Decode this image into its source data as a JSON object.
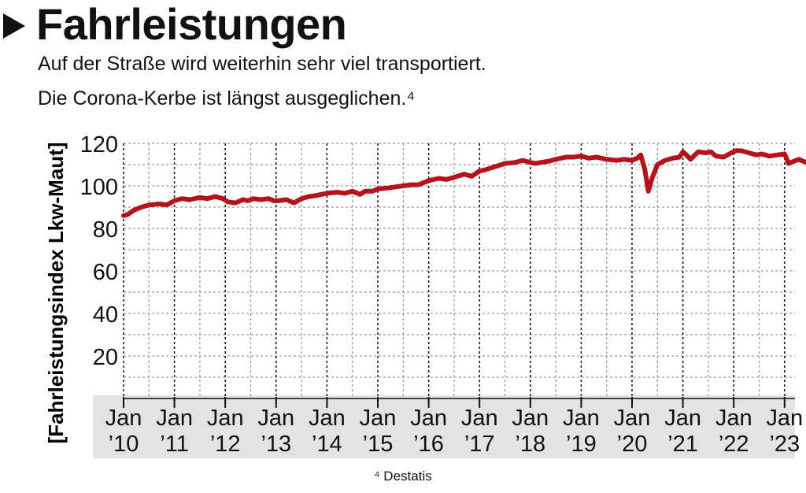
{
  "header": {
    "title": "Fahrleistungen",
    "subtitle_line1": "Auf der Straße wird weiterhin sehr viel transportiert.",
    "subtitle_line2": "Die Corona-Kerbe ist längst ausgeglichen.⁴"
  },
  "footnote": "⁴ Destatis",
  "colors": {
    "line": "#b5121b",
    "grid": "#9a9a9a",
    "band": "#e3e3e3",
    "text": "#111111"
  },
  "chart_data": {
    "type": "line",
    "title": "Fahrleistungen",
    "ylabel": "[Fahrleistungsindex Lkw-Maut]",
    "xlabel": "",
    "ylim": [
      0,
      122
    ],
    "yticks": [
      20,
      40,
      60,
      80,
      100,
      120
    ],
    "x_tick_labels": [
      {
        "line1": "Jan",
        "line2": "’10",
        "year": 2010
      },
      {
        "line1": "Jan",
        "line2": "’11",
        "year": 2011
      },
      {
        "line1": "Jan",
        "line2": "’12",
        "year": 2012
      },
      {
        "line1": "Jan",
        "line2": "’13",
        "year": 2013
      },
      {
        "line1": "Jan",
        "line2": "’14",
        "year": 2014
      },
      {
        "line1": "Jan",
        "line2": "’15",
        "year": 2015
      },
      {
        "line1": "Jan",
        "line2": "’16",
        "year": 2016
      },
      {
        "line1": "Jan",
        "line2": "’17",
        "year": 2017
      },
      {
        "line1": "Jan",
        "line2": "’18",
        "year": 2018
      },
      {
        "line1": "Jan",
        "line2": "’19",
        "year": 2019
      },
      {
        "line1": "Jan",
        "line2": "’20",
        "year": 2020
      },
      {
        "line1": "Jan",
        "line2": "’21",
        "year": 2021
      },
      {
        "line1": "Jan",
        "line2": "’22",
        "year": 2022
      },
      {
        "line1": "Jan",
        "line2": "’23",
        "year": 2023
      }
    ],
    "grid": true,
    "x_range": [
      2010.0,
      2023.42
    ],
    "series": [
      {
        "x": [
          2010.0,
          2010.08,
          2010.2,
          2010.35,
          2010.5,
          2010.7,
          2010.85,
          2011.0,
          2011.15,
          2011.3,
          2011.5,
          2011.65,
          2011.8,
          2011.95,
          2012.05,
          2012.2,
          2012.35,
          2012.45,
          2012.55,
          2012.7,
          2012.85,
          2012.95,
          2013.05,
          2013.2,
          2013.35,
          2013.5,
          2013.65,
          2013.8,
          2014.0,
          2014.2,
          2014.35,
          2014.5,
          2014.65,
          2014.75,
          2014.9,
          2015.0,
          2015.2,
          2015.35,
          2015.5,
          2015.65,
          2015.8,
          2016.0,
          2016.2,
          2016.35,
          2016.5,
          2016.7,
          2016.85,
          2017.0,
          2017.1,
          2017.3,
          2017.5,
          2017.7,
          2017.85,
          2018.0,
          2018.1,
          2018.2,
          2018.35,
          2018.5,
          2018.7,
          2018.85,
          2019.0,
          2019.15,
          2019.3,
          2019.5,
          2019.7,
          2019.85,
          2020.0,
          2020.1,
          2020.17,
          2020.25,
          2020.32,
          2020.4,
          2020.5,
          2020.65,
          2020.8,
          2020.93,
          2021.0,
          2021.07,
          2021.15,
          2021.3,
          2021.45,
          2021.55,
          2021.65,
          2021.8,
          2021.95,
          2022.05,
          2022.15,
          2022.3,
          2022.45,
          2022.55,
          2022.7,
          2022.85,
          2023.0,
          2023.08,
          2023.18,
          2023.28,
          2023.42
        ],
        "y": [
          86,
          86.5,
          88.5,
          90,
          91,
          91.5,
          91,
          93,
          94,
          93.5,
          94.5,
          94,
          95,
          94,
          92.5,
          92,
          93.5,
          93,
          94,
          93.5,
          94,
          93,
          93,
          93.5,
          92,
          94,
          95,
          95.5,
          96.5,
          97,
          96.5,
          97.5,
          96,
          97.5,
          97.5,
          98.5,
          99,
          99.5,
          100,
          100.5,
          100.5,
          102.5,
          103.5,
          103,
          104,
          105.5,
          104.5,
          107,
          107.5,
          109,
          110.5,
          111,
          112,
          111,
          110.5,
          111,
          111.5,
          112.5,
          113.5,
          113.5,
          114,
          113,
          113.5,
          112.5,
          112,
          112.5,
          112,
          113,
          114.5,
          108,
          97.5,
          104,
          110,
          112,
          113,
          113.5,
          116,
          114.5,
          112.5,
          116,
          115.5,
          116,
          114,
          113.5,
          115.5,
          116.5,
          116.5,
          115.5,
          114.5,
          115,
          114,
          114.5,
          115,
          110.5,
          111.5,
          112.5,
          111
        ]
      }
    ]
  }
}
